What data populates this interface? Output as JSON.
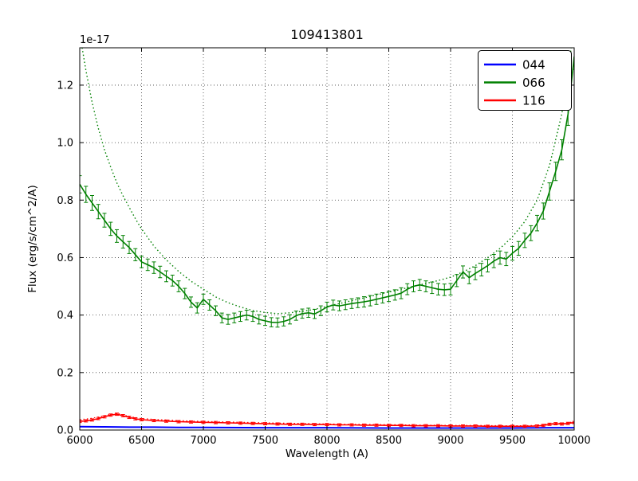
{
  "figure": {
    "title": "109413801",
    "xlabel": "Wavelength (A)",
    "ylabel": "Flux (erg/s/cm^2/A)",
    "offset_text": "1e-17",
    "background": "#ffffff"
  },
  "legend": {
    "items": [
      {
        "label": "044",
        "color": "#0000ff"
      },
      {
        "label": "066",
        "color": "#008000"
      },
      {
        "label": "116",
        "color": "#ff0000"
      }
    ]
  },
  "chart_data": {
    "type": "line",
    "title": "109413801",
    "xlabel": "Wavelength (A)",
    "ylabel": "Flux (erg/s/cm^2/A)",
    "y_offset_factor": "1e-17",
    "xlim": [
      6000,
      10000
    ],
    "ylim": [
      0,
      1.33
    ],
    "x_ticks": [
      6000,
      6500,
      7000,
      7500,
      8000,
      8500,
      9000,
      9500,
      10000
    ],
    "x_tick_labels": [
      "6000",
      "6500",
      "7000",
      "7500",
      "8000",
      "8500",
      "9000",
      "9500",
      "10000"
    ],
    "y_ticks": [
      0.0,
      0.2,
      0.4,
      0.6,
      0.8,
      1.0,
      1.2
    ],
    "y_tick_labels": [
      "0.0",
      "0.2",
      "0.4",
      "0.6",
      "0.8",
      "1.0",
      "1.2"
    ],
    "grid": true,
    "legend_position": "upper right",
    "series": [
      {
        "name": "066-model-dotted",
        "color": "#008000",
        "linestyle": "dotted",
        "linewidth": 1.4,
        "points": [
          [
            6000,
            1.38
          ],
          [
            6050,
            1.25
          ],
          [
            6100,
            1.14
          ],
          [
            6150,
            1.05
          ],
          [
            6200,
            0.975
          ],
          [
            6250,
            0.915
          ],
          [
            6300,
            0.86
          ],
          [
            6350,
            0.815
          ],
          [
            6400,
            0.775
          ],
          [
            6450,
            0.735
          ],
          [
            6500,
            0.7
          ],
          [
            6600,
            0.64
          ],
          [
            6700,
            0.592
          ],
          [
            6800,
            0.552
          ],
          [
            6900,
            0.518
          ],
          [
            7000,
            0.49
          ],
          [
            7100,
            0.463
          ],
          [
            7200,
            0.443
          ],
          [
            7300,
            0.428
          ],
          [
            7400,
            0.416
          ],
          [
            7500,
            0.409
          ],
          [
            7600,
            0.405
          ],
          [
            7700,
            0.408
          ],
          [
            7800,
            0.413
          ],
          [
            7900,
            0.42
          ],
          [
            8000,
            0.43
          ],
          [
            8100,
            0.44
          ],
          [
            8200,
            0.45
          ],
          [
            8300,
            0.46
          ],
          [
            8400,
            0.47
          ],
          [
            8500,
            0.48
          ],
          [
            8600,
            0.49
          ],
          [
            8700,
            0.5
          ],
          [
            8800,
            0.51
          ],
          [
            8900,
            0.52
          ],
          [
            9000,
            0.532
          ],
          [
            9100,
            0.55
          ],
          [
            9200,
            0.572
          ],
          [
            9300,
            0.6
          ],
          [
            9400,
            0.632
          ],
          [
            9500,
            0.672
          ],
          [
            9600,
            0.725
          ],
          [
            9700,
            0.8
          ],
          [
            9800,
            0.92
          ],
          [
            9900,
            1.1
          ],
          [
            9950,
            1.24
          ],
          [
            10000,
            1.42
          ]
        ]
      },
      {
        "name": "116-model-dotted",
        "color": "#ff0000",
        "linestyle": "dotted",
        "linewidth": 1.2,
        "points": [
          [
            6000,
            0.036
          ],
          [
            6100,
            0.041
          ],
          [
            6200,
            0.05
          ],
          [
            6250,
            0.055
          ],
          [
            6300,
            0.058
          ],
          [
            6350,
            0.053
          ],
          [
            6400,
            0.047
          ],
          [
            6500,
            0.04
          ],
          [
            6600,
            0.037
          ],
          [
            6700,
            0.035
          ],
          [
            6800,
            0.033
          ],
          [
            6900,
            0.031
          ],
          [
            7000,
            0.03
          ],
          [
            7200,
            0.028
          ],
          [
            7400,
            0.026
          ],
          [
            7600,
            0.024
          ],
          [
            7800,
            0.023
          ],
          [
            8000,
            0.021
          ],
          [
            8200,
            0.02
          ],
          [
            8400,
            0.019
          ],
          [
            8600,
            0.018
          ],
          [
            8800,
            0.017
          ],
          [
            9000,
            0.016
          ],
          [
            9200,
            0.016
          ],
          [
            9400,
            0.015
          ],
          [
            9600,
            0.015
          ],
          [
            9700,
            0.016
          ],
          [
            9800,
            0.022
          ],
          [
            9900,
            0.024
          ],
          [
            10000,
            0.028
          ]
        ]
      },
      {
        "name": "044",
        "color": "#0000ff",
        "linestyle": "solid",
        "linewidth": 2,
        "points": [
          [
            6000,
            0.012
          ],
          [
            6200,
            0.011
          ],
          [
            6400,
            0.01
          ],
          [
            6600,
            0.01
          ],
          [
            6800,
            0.009
          ],
          [
            7000,
            0.009
          ],
          [
            7500,
            0.008
          ],
          [
            8000,
            0.008
          ],
          [
            8500,
            0.007
          ],
          [
            9000,
            0.007
          ],
          [
            9500,
            0.007
          ],
          [
            9800,
            0.008
          ],
          [
            10000,
            0.008
          ]
        ]
      },
      {
        "name": "116",
        "color": "#ff0000",
        "linestyle": "solid",
        "linewidth": 1.6,
        "yerr_default": 0.004,
        "points": [
          [
            6000,
            0.03
          ],
          [
            6050,
            0.032
          ],
          [
            6100,
            0.035
          ],
          [
            6150,
            0.04
          ],
          [
            6200,
            0.046
          ],
          [
            6250,
            0.052
          ],
          [
            6300,
            0.055
          ],
          [
            6350,
            0.05
          ],
          [
            6400,
            0.044
          ],
          [
            6450,
            0.039
          ],
          [
            6500,
            0.036
          ],
          [
            6600,
            0.033
          ],
          [
            6700,
            0.031
          ],
          [
            6800,
            0.029
          ],
          [
            6900,
            0.028
          ],
          [
            7000,
            0.027
          ],
          [
            7100,
            0.026
          ],
          [
            7200,
            0.025
          ],
          [
            7300,
            0.024
          ],
          [
            7400,
            0.023
          ],
          [
            7500,
            0.022
          ],
          [
            7600,
            0.021
          ],
          [
            7700,
            0.02
          ],
          [
            7800,
            0.02
          ],
          [
            7900,
            0.019
          ],
          [
            8000,
            0.019
          ],
          [
            8100,
            0.018
          ],
          [
            8200,
            0.018
          ],
          [
            8300,
            0.017
          ],
          [
            8400,
            0.017
          ],
          [
            8500,
            0.016
          ],
          [
            8600,
            0.016
          ],
          [
            8700,
            0.015
          ],
          [
            8800,
            0.015
          ],
          [
            8900,
            0.015
          ],
          [
            9000,
            0.014
          ],
          [
            9100,
            0.014
          ],
          [
            9200,
            0.014
          ],
          [
            9300,
            0.013
          ],
          [
            9400,
            0.013
          ],
          [
            9500,
            0.013
          ],
          [
            9600,
            0.013
          ],
          [
            9700,
            0.014
          ],
          [
            9750,
            0.016
          ],
          [
            9800,
            0.02
          ],
          [
            9850,
            0.022
          ],
          [
            9900,
            0.021
          ],
          [
            9950,
            0.023
          ],
          [
            10000,
            0.026
          ]
        ]
      },
      {
        "name": "066",
        "color": "#008000",
        "linestyle": "solid",
        "linewidth": 1.6,
        "points": [
          [
            6000,
            0.855,
            0.03
          ],
          [
            6050,
            0.82,
            0.028
          ],
          [
            6100,
            0.79,
            0.026
          ],
          [
            6150,
            0.76,
            0.025
          ],
          [
            6200,
            0.73,
            0.024
          ],
          [
            6250,
            0.7,
            0.023
          ],
          [
            6300,
            0.675,
            0.022
          ],
          [
            6350,
            0.655,
            0.022
          ],
          [
            6400,
            0.635,
            0.021
          ],
          [
            6450,
            0.61,
            0.021
          ],
          [
            6500,
            0.585,
            0.02
          ],
          [
            6550,
            0.575,
            0.02
          ],
          [
            6600,
            0.565,
            0.02
          ],
          [
            6650,
            0.55,
            0.02
          ],
          [
            6700,
            0.535,
            0.019
          ],
          [
            6750,
            0.52,
            0.019
          ],
          [
            6800,
            0.5,
            0.019
          ],
          [
            6850,
            0.475,
            0.018
          ],
          [
            6900,
            0.445,
            0.018
          ],
          [
            6950,
            0.425,
            0.018
          ],
          [
            7000,
            0.455,
            0.018
          ],
          [
            7050,
            0.435,
            0.018
          ],
          [
            7100,
            0.415,
            0.017
          ],
          [
            7150,
            0.39,
            0.017
          ],
          [
            7200,
            0.385,
            0.017
          ],
          [
            7250,
            0.39,
            0.017
          ],
          [
            7300,
            0.395,
            0.017
          ],
          [
            7350,
            0.4,
            0.017
          ],
          [
            7400,
            0.395,
            0.017
          ],
          [
            7450,
            0.385,
            0.016
          ],
          [
            7500,
            0.38,
            0.016
          ],
          [
            7550,
            0.375,
            0.016
          ],
          [
            7600,
            0.374,
            0.016
          ],
          [
            7650,
            0.378,
            0.016
          ],
          [
            7700,
            0.385,
            0.016
          ],
          [
            7750,
            0.398,
            0.016
          ],
          [
            7800,
            0.405,
            0.016
          ],
          [
            7850,
            0.408,
            0.016
          ],
          [
            7900,
            0.404,
            0.016
          ],
          [
            7950,
            0.415,
            0.017
          ],
          [
            8000,
            0.428,
            0.017
          ],
          [
            8050,
            0.435,
            0.017
          ],
          [
            8100,
            0.432,
            0.017
          ],
          [
            8150,
            0.436,
            0.017
          ],
          [
            8200,
            0.44,
            0.017
          ],
          [
            8250,
            0.443,
            0.017
          ],
          [
            8300,
            0.446,
            0.018
          ],
          [
            8350,
            0.45,
            0.018
          ],
          [
            8400,
            0.455,
            0.018
          ],
          [
            8450,
            0.46,
            0.018
          ],
          [
            8500,
            0.465,
            0.018
          ],
          [
            8550,
            0.47,
            0.018
          ],
          [
            8600,
            0.476,
            0.019
          ],
          [
            8650,
            0.49,
            0.019
          ],
          [
            8700,
            0.5,
            0.019
          ],
          [
            8750,
            0.505,
            0.019
          ],
          [
            8800,
            0.5,
            0.019
          ],
          [
            8850,
            0.495,
            0.02
          ],
          [
            8900,
            0.49,
            0.02
          ],
          [
            8950,
            0.488,
            0.02
          ],
          [
            9000,
            0.49,
            0.02
          ],
          [
            9050,
            0.52,
            0.021
          ],
          [
            9100,
            0.55,
            0.021
          ],
          [
            9150,
            0.53,
            0.021
          ],
          [
            9200,
            0.545,
            0.022
          ],
          [
            9250,
            0.558,
            0.022
          ],
          [
            9300,
            0.572,
            0.022
          ],
          [
            9350,
            0.588,
            0.023
          ],
          [
            9400,
            0.6,
            0.023
          ],
          [
            9450,
            0.595,
            0.023
          ],
          [
            9500,
            0.615,
            0.024
          ],
          [
            9550,
            0.632,
            0.024
          ],
          [
            9600,
            0.66,
            0.025
          ],
          [
            9650,
            0.685,
            0.026
          ],
          [
            9700,
            0.72,
            0.027
          ],
          [
            9750,
            0.762,
            0.028
          ],
          [
            9800,
            0.83,
            0.03
          ],
          [
            9850,
            0.9,
            0.032
          ],
          [
            9900,
            0.975,
            0.035
          ],
          [
            9950,
            1.1,
            0.04
          ],
          [
            10000,
            1.3,
            0.045
          ]
        ]
      }
    ]
  }
}
